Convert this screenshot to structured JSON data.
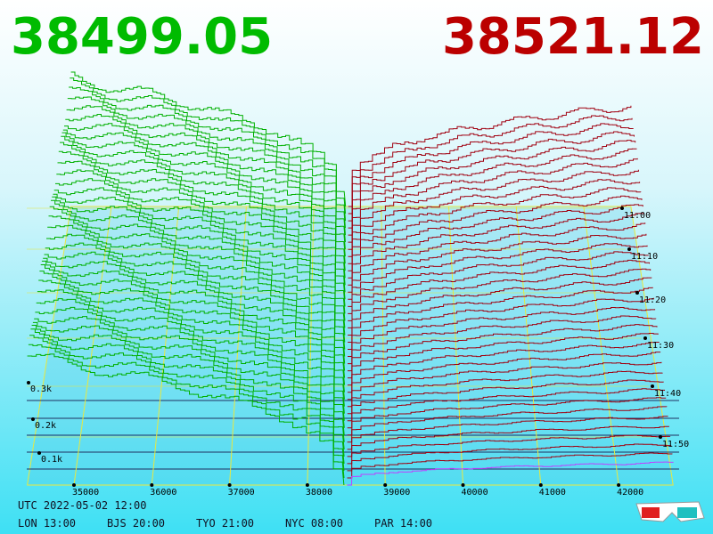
{
  "prices": {
    "bid": "38499.05",
    "ask": "38521.12"
  },
  "price_axis": [
    "35000",
    "36000",
    "37000",
    "38000",
    "39000",
    "40000",
    "41000",
    "42000"
  ],
  "volume_axis": [
    "0.3k",
    "0.2k",
    "0.1k"
  ],
  "time_axis": [
    "11:00",
    "11:10",
    "11:20",
    "11:30",
    "11:40",
    "11:50"
  ],
  "footer": {
    "utc": "UTC 2022-05-02 12:00",
    "zones": [
      "LON 13:00",
      "BJS 20:00",
      "TYO 21:00",
      "NYC 08:00",
      "PAR 14:00"
    ]
  }
}
